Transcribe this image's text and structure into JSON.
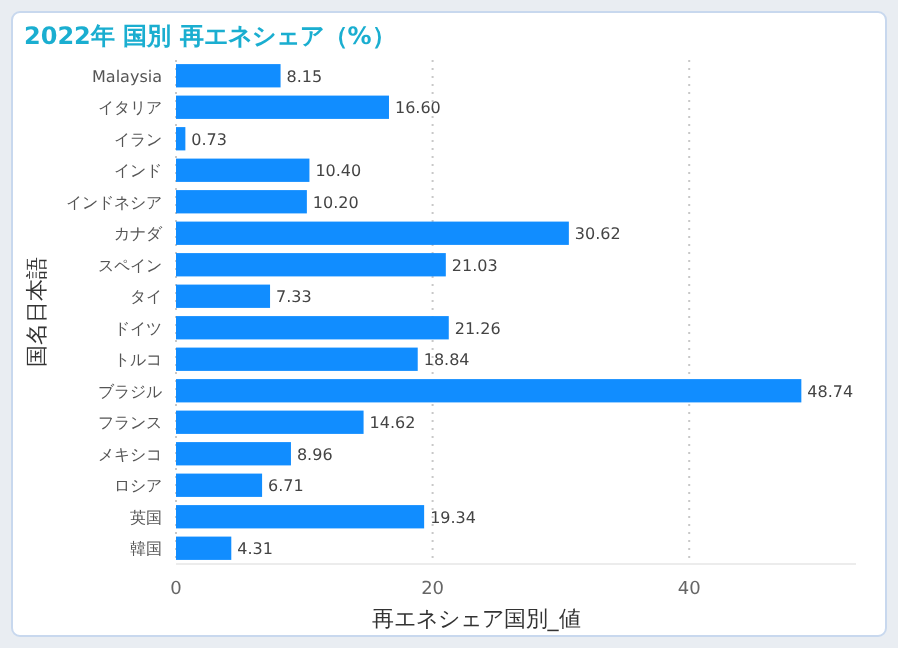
{
  "chart_data": {
    "type": "bar",
    "orientation": "horizontal",
    "title": "2022年 国別 再エネシェア（%）",
    "xlabel": "再エネシェア国別_値",
    "ylabel": "国名日本語",
    "categories": [
      "Malaysia",
      "イタリア",
      "イラン",
      "インド",
      "インドネシア",
      "カナダ",
      "スペイン",
      "タイ",
      "ドイツ",
      "トルコ",
      "ブラジル",
      "フランス",
      "メキシコ",
      "ロシア",
      "英国",
      "韓国"
    ],
    "values": [
      8.15,
      16.6,
      0.73,
      10.4,
      10.2,
      30.62,
      21.03,
      7.33,
      21.26,
      18.84,
      48.74,
      14.62,
      8.96,
      6.71,
      19.34,
      4.31
    ],
    "value_labels": [
      "8.15",
      "16.60",
      "0.73",
      "10.40",
      "10.20",
      "30.62",
      "21.03",
      "7.33",
      "21.26",
      "18.84",
      "48.74",
      "14.62",
      "8.96",
      "6.71",
      "19.34",
      "4.31"
    ],
    "color": "#118dff",
    "xlim": [
      0,
      53
    ],
    "xticks": [
      0,
      20,
      40
    ],
    "grid": "x"
  }
}
